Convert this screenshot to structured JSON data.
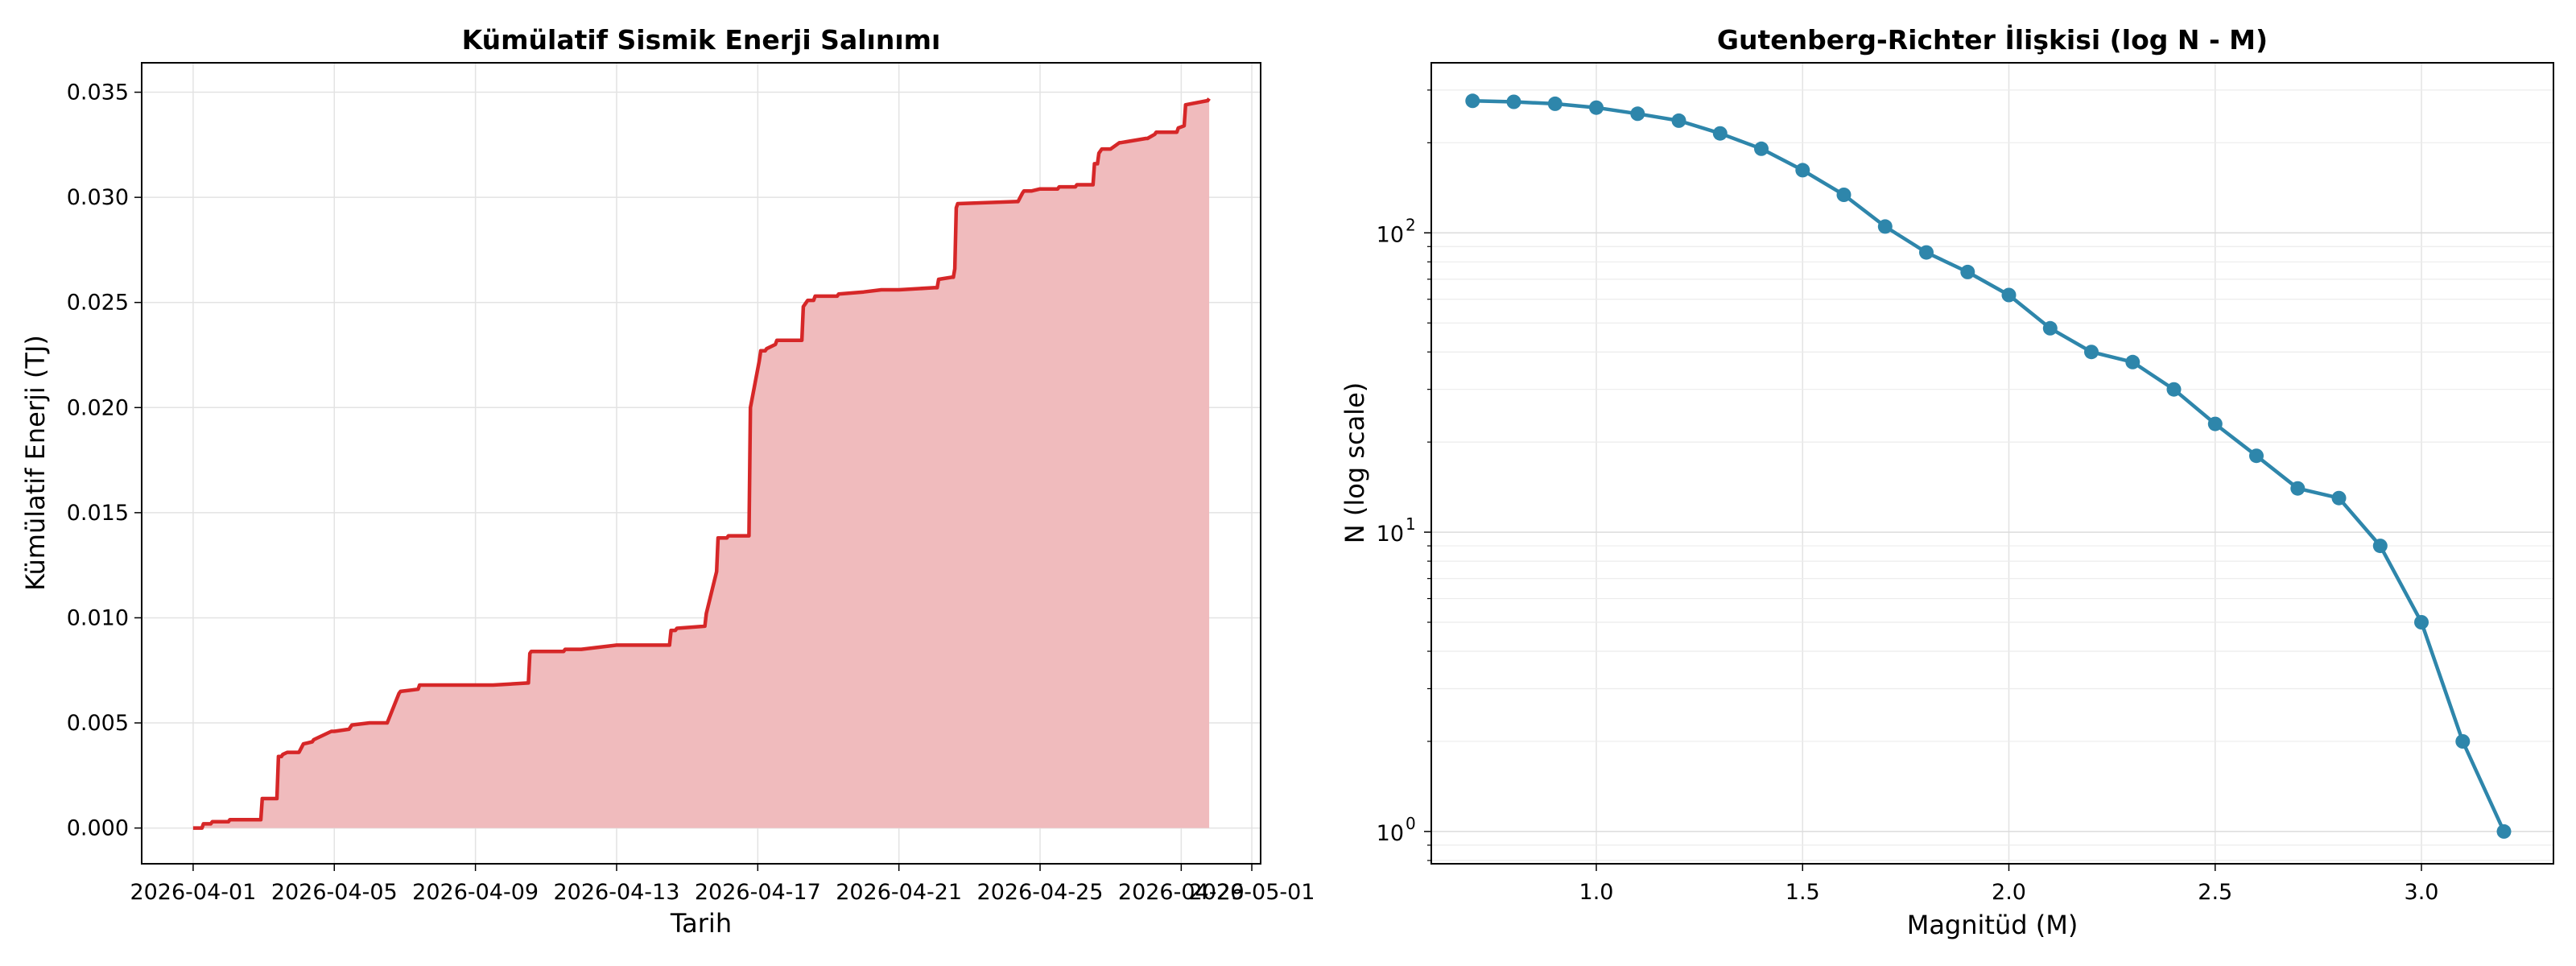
{
  "chart_data": [
    {
      "type": "area",
      "title": "Kümülatif Sismik Enerji Salınımı",
      "xlabel": "Tarih",
      "ylabel": "Kümülatif Enerji (TJ)",
      "x_ticks": [
        "2026-04-01",
        "2026-04-05",
        "2026-04-09",
        "2026-04-13",
        "2026-04-17",
        "2026-04-21",
        "2026-04-25",
        "2026-04-29",
        "2026-05-01"
      ],
      "y_ticks": [
        "0.000",
        "0.005",
        "0.010",
        "0.015",
        "0.020",
        "0.025",
        "0.030",
        "0.035"
      ],
      "xlim": [
        "2026-03-30 13:00",
        "2026-05-01 06:00"
      ],
      "ylim": [
        -0.0017,
        0.0364
      ],
      "grid": true,
      "line_color": "#d62728",
      "fill_color": "#f0bbbd",
      "series": [
        {
          "x": [
            "2026-04-01 00:00",
            "2026-04-01 06:00",
            "2026-04-01 07:00",
            "2026-04-01 12:00",
            "2026-04-01 13:00",
            "2026-04-02 00:00",
            "2026-04-02 01:00",
            "2026-04-02 22:00",
            "2026-04-02 23:00",
            "2026-04-03 09:00",
            "2026-04-03 10:00",
            "2026-04-03 12:00",
            "2026-04-03 13:00",
            "2026-04-03 16:00",
            "2026-04-04 00:00",
            "2026-04-04 03:00",
            "2026-04-04 09:00",
            "2026-04-04 10:00",
            "2026-04-04 22:00",
            "2026-04-05 00:00",
            "2026-04-05 10:00",
            "2026-04-05 12:00",
            "2026-04-06 00:00",
            "2026-04-06 12:00",
            "2026-04-06 20:00",
            "2026-04-06 21:00",
            "2026-04-07 09:00",
            "2026-04-07 10:00",
            "2026-04-07 17:00",
            "2026-04-07 18:00",
            "2026-04-08 00:00",
            "2026-04-09 12:00",
            "2026-04-10 12:00",
            "2026-04-10 13:00",
            "2026-04-10 14:00",
            "2026-04-11 12:00",
            "2026-04-11 13:00",
            "2026-04-12 00:00",
            "2026-04-12 12:00",
            "2026-04-13 00:00",
            "2026-04-14 12:00",
            "2026-04-14 13:00",
            "2026-04-14 16:00",
            "2026-04-14 17:00",
            "2026-04-15 12:00",
            "2026-04-15 13:00",
            "2026-04-15 20:00",
            "2026-04-15 21:00",
            "2026-04-16 03:00",
            "2026-04-16 04:00",
            "2026-04-16 18:00",
            "2026-04-16 19:00",
            "2026-04-17 01:00",
            "2026-04-17 02:00",
            "2026-04-17 05:00",
            "2026-04-17 06:00",
            "2026-04-17 12:00",
            "2026-04-17 13:00",
            "2026-04-18 06:00",
            "2026-04-18 07:00",
            "2026-04-18 10:00",
            "2026-04-18 14:00",
            "2026-04-18 15:00",
            "2026-04-19 06:00",
            "2026-04-19 07:00",
            "2026-04-20 00:00",
            "2026-04-20 12:00",
            "2026-04-21 00:00",
            "2026-04-22 00:00",
            "2026-04-22 02:00",
            "2026-04-22 03:00",
            "2026-04-22 12:00",
            "2026-04-22 13:00",
            "2026-04-22 14:00",
            "2026-04-22 15:00",
            "2026-04-22 16:00",
            "2026-04-24 08:00",
            "2026-04-24 09:00",
            "2026-04-24 12:00",
            "2026-04-24 13:00",
            "2026-04-24 18:00",
            "2026-04-25 00:00",
            "2026-04-25 12:00",
            "2026-04-25 13:00",
            "2026-04-26 00:00",
            "2026-04-26 01:00",
            "2026-04-26 12:00",
            "2026-04-26 13:00",
            "2026-04-26 15:00",
            "2026-04-26 16:00",
            "2026-04-26 18:00",
            "2026-04-27 00:00",
            "2026-04-27 06:00",
            "2026-04-27 07:00",
            "2026-04-28 00:00",
            "2026-04-28 01:00",
            "2026-04-28 06:00",
            "2026-04-28 07:00",
            "2026-04-28 21:00",
            "2026-04-28 22:00",
            "2026-04-29 02:00",
            "2026-04-29 03:00",
            "2026-04-29 18:00",
            "2026-04-29 19:00"
          ],
          "y": [
            0.0,
            0.0,
            0.0002,
            0.0002,
            0.0003,
            0.0003,
            0.0004,
            0.0004,
            0.0014,
            0.0014,
            0.0034,
            0.0034,
            0.0035,
            0.0036,
            0.0036,
            0.004,
            0.0041,
            0.0042,
            0.0046,
            0.0046,
            0.0047,
            0.0049,
            0.005,
            0.005,
            0.0064,
            0.0065,
            0.0066,
            0.0068,
            0.0068,
            0.0068,
            0.0068,
            0.0068,
            0.0069,
            0.0083,
            0.0084,
            0.0084,
            0.0085,
            0.0085,
            0.0086,
            0.0087,
            0.0087,
            0.0094,
            0.0094,
            0.0095,
            0.0096,
            0.0102,
            0.0122,
            0.0138,
            0.0138,
            0.0139,
            0.0139,
            0.02,
            0.0222,
            0.0227,
            0.0227,
            0.0228,
            0.023,
            0.0232,
            0.0232,
            0.0248,
            0.0251,
            0.0251,
            0.0253,
            0.0253,
            0.0254,
            0.0255,
            0.0256,
            0.0256,
            0.0257,
            0.0257,
            0.0261,
            0.0262,
            0.0262,
            0.0266,
            0.0295,
            0.0297,
            0.0298,
            0.0298,
            0.0302,
            0.0303,
            0.0303,
            0.0304,
            0.0304,
            0.0305,
            0.0305,
            0.0306,
            0.0306,
            0.0316,
            0.0316,
            0.0321,
            0.0323,
            0.0323,
            0.0326,
            0.0326,
            0.0328,
            0.0328,
            0.033,
            0.0331,
            0.0331,
            0.0333,
            0.0334,
            0.0344,
            0.0346,
            0.0347
          ]
        }
      ]
    },
    {
      "type": "line",
      "title": "Gutenberg-Richter İlişkisi (log N - M)",
      "xlabel": "Magnitüd (M)",
      "ylabel": "N (log scale)",
      "y_scale": "log",
      "x_ticks": [
        "1.0",
        "1.5",
        "2.0",
        "2.5",
        "3.0"
      ],
      "y_ticks": [
        {
          "base": "10",
          "exp": "0"
        },
        {
          "base": "10",
          "exp": "1"
        },
        {
          "base": "10",
          "exp": "2"
        }
      ],
      "xlim": [
        0.6,
        3.32
      ],
      "ylim": [
        0.78,
        370
      ],
      "grid": true,
      "line_color": "#2e86ab",
      "marker": "circle",
      "series": [
        {
          "x": [
            0.7,
            0.8,
            0.9,
            1.0,
            1.1,
            1.2,
            1.3,
            1.4,
            1.5,
            1.6,
            1.7,
            1.8,
            1.9,
            2.0,
            2.1,
            2.2,
            2.3,
            2.4,
            2.5,
            2.6,
            2.7,
            2.8,
            2.9,
            3.0,
            3.1,
            3.2
          ],
          "y": [
            276,
            274,
            270,
            262,
            250,
            237,
            215,
            191,
            162,
            134,
            105,
            86,
            74,
            62,
            48,
            40,
            37,
            30,
            23,
            18,
            14,
            13,
            9,
            5,
            2,
            1
          ]
        }
      ]
    }
  ]
}
